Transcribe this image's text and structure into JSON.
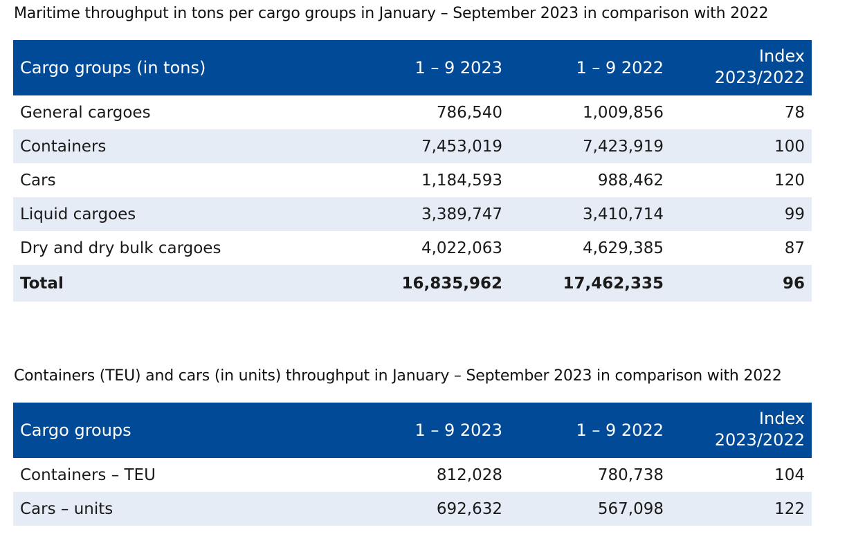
{
  "table1": {
    "caption": "Maritime throughput in tons per cargo groups in January –  September  2023 in comparison with 2022",
    "headers": [
      "Cargo groups (in tons)",
      "1 – 9 2023",
      "1 – 9 2022",
      "Index",
      "2023/2022"
    ],
    "rows": [
      [
        "General cargoes",
        "786,540",
        "1,009,856",
        "78"
      ],
      [
        "Containers",
        "7,453,019",
        "7,423,919",
        "100"
      ],
      [
        "Cars",
        "1,184,593",
        "988,462",
        "120"
      ],
      [
        "Liquid cargoes",
        "3,389,747",
        "3,410,714",
        "99"
      ],
      [
        "Dry and dry bulk cargoes",
        "4,022,063",
        "4,629,385",
        "87"
      ],
      [
        "Total",
        "16,835,962",
        "17,462,335",
        "96"
      ]
    ]
  },
  "table2": {
    "caption": "Containers (TEU) and cars (in units) throughput in January – September 2023 in comparison with 2022",
    "headers": [
      "Cargo groups",
      "1 – 9 2023",
      "1 – 9 2022",
      "Index",
      "2023/2022"
    ],
    "rows": [
      [
        "Containers – TEU",
        "812,028",
        "780,738",
        "104"
      ],
      [
        "Cars – units",
        "692,632",
        "567,098",
        "122"
      ]
    ]
  },
  "colors": {
    "header_bg": "#004a98",
    "header_text": "#ffffff",
    "stripe_bg": "#e6ecf6"
  }
}
